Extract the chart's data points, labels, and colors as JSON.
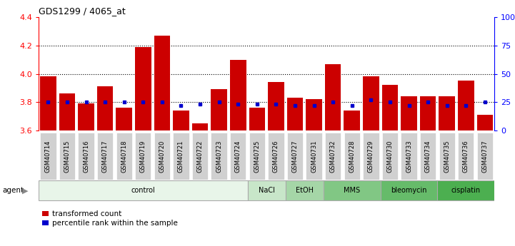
{
  "title": "GDS1299 / 4065_at",
  "samples": [
    "GSM40714",
    "GSM40715",
    "GSM40716",
    "GSM40717",
    "GSM40718",
    "GSM40719",
    "GSM40720",
    "GSM40721",
    "GSM40722",
    "GSM40723",
    "GSM40724",
    "GSM40725",
    "GSM40726",
    "GSM40727",
    "GSM40731",
    "GSM40732",
    "GSM40728",
    "GSM40729",
    "GSM40730",
    "GSM40733",
    "GSM40734",
    "GSM40735",
    "GSM40736",
    "GSM40737"
  ],
  "transformed_count": [
    3.98,
    3.86,
    3.79,
    3.91,
    3.76,
    4.19,
    4.27,
    3.74,
    3.65,
    3.89,
    4.1,
    3.76,
    3.94,
    3.83,
    3.82,
    4.07,
    3.74,
    3.98,
    3.92,
    3.84,
    3.84,
    3.84,
    3.95,
    3.71
  ],
  "percentile": [
    25,
    25,
    25,
    25,
    25,
    25,
    25,
    22,
    23,
    25,
    23,
    23,
    23,
    22,
    22,
    25,
    22,
    27,
    25,
    22,
    25,
    22,
    22,
    25
  ],
  "agents": [
    {
      "label": "control",
      "start": 0,
      "end": 11
    },
    {
      "label": "NaCl",
      "start": 11,
      "end": 13
    },
    {
      "label": "EtOH",
      "start": 13,
      "end": 15
    },
    {
      "label": "MMS",
      "start": 15,
      "end": 18
    },
    {
      "label": "bleomycin",
      "start": 18,
      "end": 21
    },
    {
      "label": "cisplatin",
      "start": 21,
      "end": 24
    }
  ],
  "agent_colors": [
    "#e8f5e9",
    "#c8e6c9",
    "#a5d6a7",
    "#81c784",
    "#66bb6a",
    "#4caf50"
  ],
  "ylim_left": [
    3.6,
    4.4
  ],
  "ylim_right": [
    0,
    100
  ],
  "bar_color": "#cc0000",
  "percentile_color": "#0000cc",
  "background_color": "#ffffff",
  "tick_label_bg": "#d0d0d0"
}
